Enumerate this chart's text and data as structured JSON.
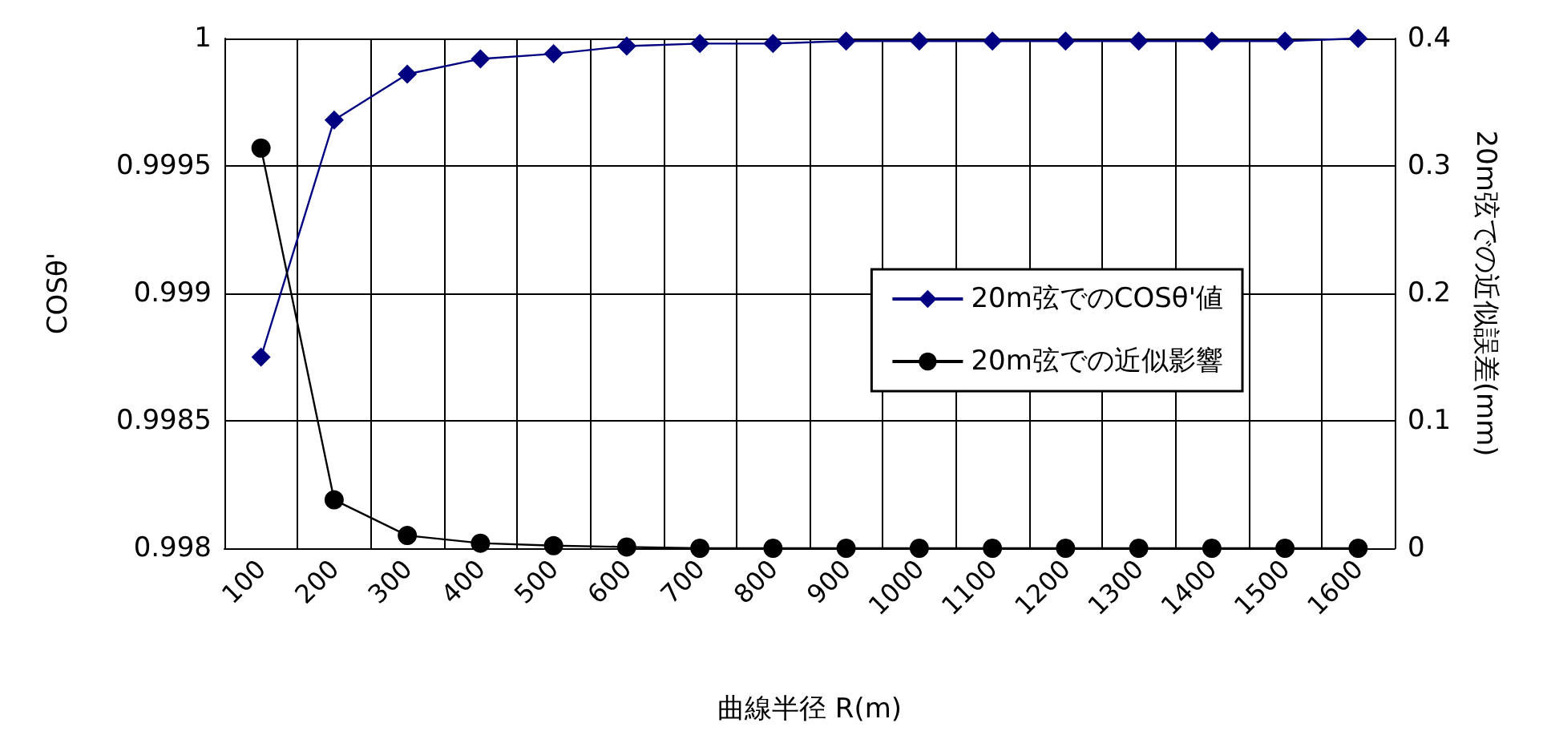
{
  "chart_data": {
    "type": "line",
    "xlabel": "曲線半径 R(m)",
    "ylabel": "COSθ'",
    "y2label": "20m弦での近似誤差(mm)",
    "categories": [
      "100",
      "200",
      "300",
      "400",
      "500",
      "600",
      "700",
      "800",
      "900",
      "1000",
      "1100",
      "1200",
      "1300",
      "1400",
      "1500",
      "1600"
    ],
    "series": [
      {
        "name": "20m弦でのCOSθ'値",
        "color": "#000080",
        "marker": "diamond",
        "values": [
          0.99875,
          0.99968,
          0.99986,
          0.99992,
          0.99994,
          0.99997,
          0.99998,
          0.99998,
          0.99999,
          0.99999,
          0.99999,
          0.99999,
          0.99999,
          0.99999,
          0.99999,
          1.0
        ]
      },
      {
        "name": "20m弦での近似影響",
        "color": "#000000",
        "marker": "circle",
        "axis": "y2",
        "values": [
          0.314,
          0.038,
          0.01,
          0.004,
          0.002,
          0.001,
          0,
          0,
          0,
          0,
          0,
          0,
          0,
          0,
          0,
          0
        ]
      }
    ],
    "ylim": [
      0.998,
      1
    ],
    "yticks": [
      0.998,
      0.9985,
      0.999,
      0.9995,
      1
    ],
    "y2lim": [
      0,
      0.4
    ],
    "y2ticks": [
      0,
      0.1,
      0.2,
      0.3,
      0.4
    ],
    "grid": true,
    "legend": "right"
  }
}
